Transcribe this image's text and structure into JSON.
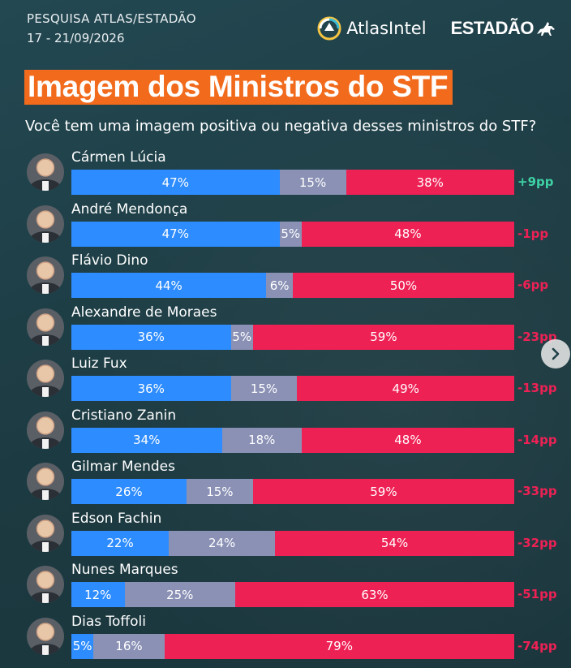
{
  "header": {
    "survey_name": "PESQUISA ATLAS/ESTADÃO",
    "date_range": "17 - 21/09/2026",
    "atlas_logo_text": "AtlasIntel",
    "estadao_logo_text": "ESTADÃO"
  },
  "title": "Imagem dos Ministros do STF",
  "question": "Você tem uma imagem positiva ou negativa desses ministros do STF?",
  "colors": {
    "positive": "#2d8cff",
    "neutral": "#8a91b5",
    "negative": "#ee2155",
    "balance_positive": "#3dd2a4",
    "balance_negative": "#ee2155",
    "title_background": "#f26b1d"
  },
  "chart_data": {
    "type": "bar",
    "orientation": "horizontal-stacked-100",
    "categories": [
      "Cármen Lúcia",
      "André Mendonça",
      "Flávio Dino",
      "Alexandre de Moraes",
      "Luiz Fux",
      "Cristiano Zanin",
      "Gilmar Mendes",
      "Edson Fachin",
      "Nunes Marques",
      "Dias Toffoli"
    ],
    "series": [
      {
        "values": [
          47,
          47,
          44,
          36,
          36,
          34,
          26,
          22,
          12,
          5
        ]
      },
      {
        "values": [
          15,
          5,
          6,
          5,
          15,
          18,
          15,
          24,
          25,
          16
        ]
      },
      {
        "values": [
          38,
          48,
          50,
          59,
          49,
          48,
          59,
          54,
          63,
          79
        ]
      }
    ],
    "value_labels": [
      [
        "47%",
        "15%",
        "38%"
      ],
      [
        "47%",
        "5%",
        "48%"
      ],
      [
        "44%",
        "6%",
        "50%"
      ],
      [
        "36%",
        "5%",
        "59%"
      ],
      [
        "36%",
        "15%",
        "49%"
      ],
      [
        "34%",
        "18%",
        "48%"
      ],
      [
        "26%",
        "15%",
        "59%"
      ],
      [
        "22%",
        "24%",
        "54%"
      ],
      [
        "12%",
        "25%",
        "63%"
      ],
      [
        "5%",
        "16%",
        "79%"
      ]
    ],
    "balance_labels": [
      "+9pp",
      "-1pp",
      "-6pp",
      "-23pp",
      "-13pp",
      "-14pp",
      "-33pp",
      "-32pp",
      "-51pp",
      "-74pp"
    ],
    "balance_values": [
      9,
      -1,
      -6,
      -23,
      -13,
      -14,
      -33,
      -32,
      -51,
      -74
    ],
    "xlim": [
      0,
      100
    ],
    "grid": false,
    "legend": "none"
  },
  "icons": {
    "next": "chevron-right-icon",
    "avatar": "person-photo"
  }
}
